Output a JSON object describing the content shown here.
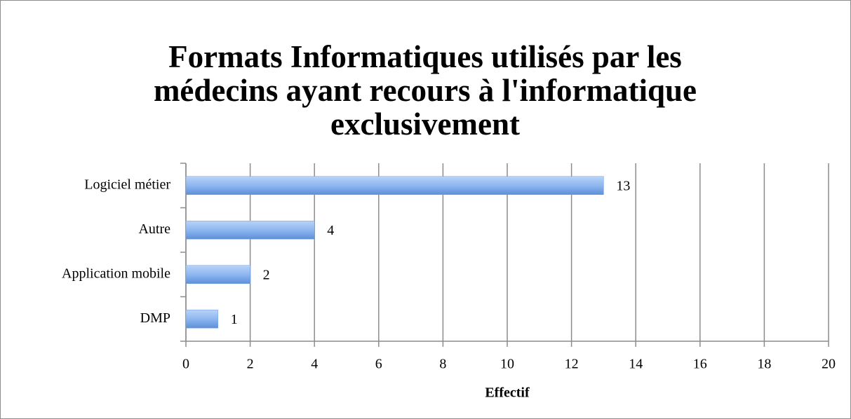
{
  "chart_data": {
    "type": "bar",
    "orientation": "horizontal",
    "title": "Formats Informatiques utilisés par les médecins ayant recours à l'informatique exclusivement",
    "categories": [
      "Logiciel métier",
      "Autre",
      "Application mobile",
      "DMP"
    ],
    "values": [
      13,
      4,
      2,
      1
    ],
    "color": "#6fa0e6",
    "x_label": "Effectif",
    "xlim": [
      0,
      20
    ],
    "xticks": [
      0,
      2,
      4,
      6,
      8,
      10,
      12,
      14,
      16,
      18,
      20
    ],
    "grid": true
  }
}
